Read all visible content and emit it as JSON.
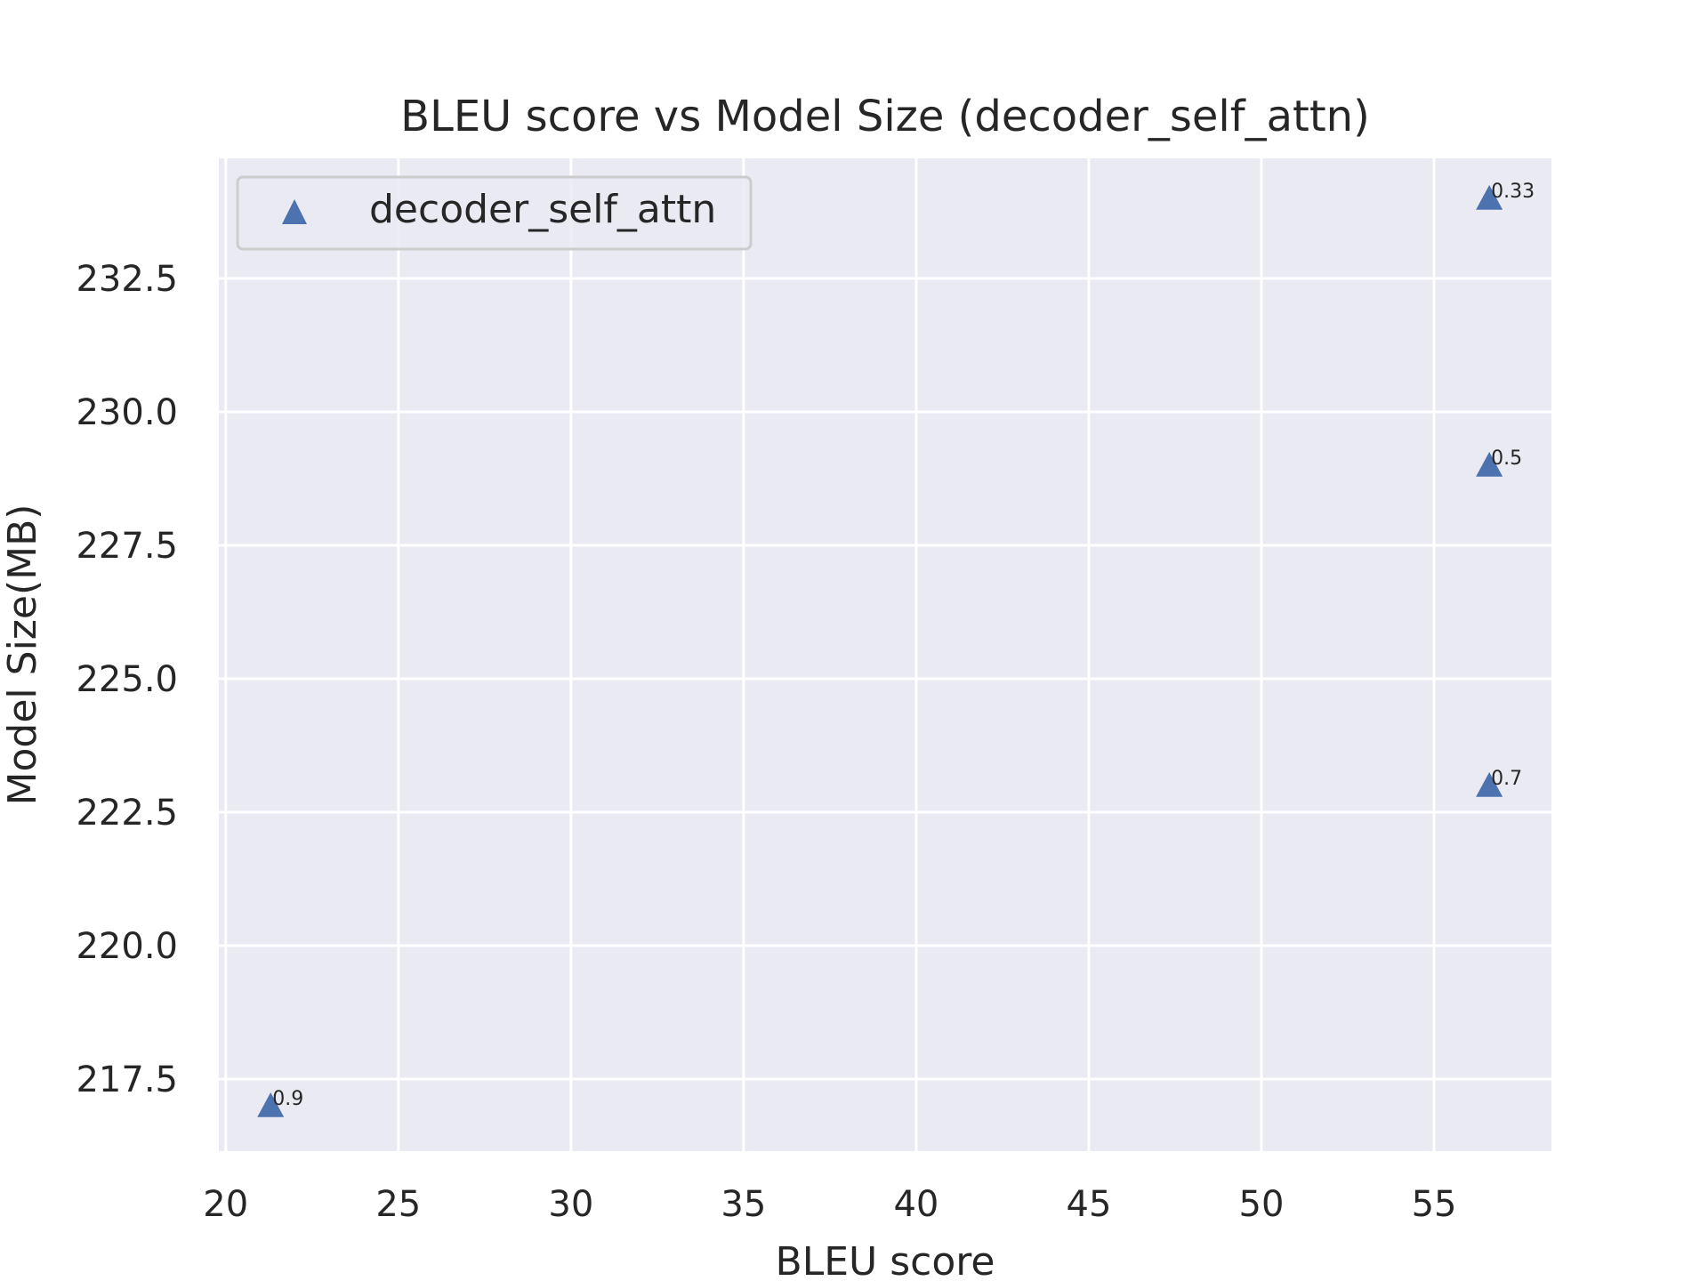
{
  "chart_data": {
    "type": "scatter",
    "title": "BLEU score vs Model Size (decoder_self_attn)",
    "xlabel": "BLEU score",
    "ylabel": "Model Size(MB)",
    "xlim": [
      19.8,
      58.4
    ],
    "ylim": [
      216.15,
      234.75
    ],
    "xticks": [
      20,
      25,
      30,
      35,
      40,
      45,
      50,
      55
    ],
    "yticks": [
      217.5,
      220.0,
      222.5,
      225.0,
      227.5,
      230.0,
      232.5
    ],
    "xtick_labels": [
      "20",
      "25",
      "30",
      "35",
      "40",
      "45",
      "50",
      "55"
    ],
    "ytick_labels": [
      "217.5",
      "220.0",
      "222.5",
      "225.0",
      "227.5",
      "230.0",
      "232.5"
    ],
    "grid": true,
    "legend_position": "top-left",
    "series": [
      {
        "name": "decoder_self_attn",
        "marker": "triangle",
        "color": "#4c72b0",
        "points": [
          {
            "x": 21.3,
            "y": 217.0,
            "label": "0.9"
          },
          {
            "x": 56.6,
            "y": 223.0,
            "label": "0.7"
          },
          {
            "x": 56.6,
            "y": 229.0,
            "label": "0.5"
          },
          {
            "x": 56.6,
            "y": 234.0,
            "label": "0.33"
          }
        ]
      }
    ],
    "colors": {
      "plot_background": "#eaeaf2",
      "grid": "#ffffff",
      "text": "#262626"
    }
  }
}
